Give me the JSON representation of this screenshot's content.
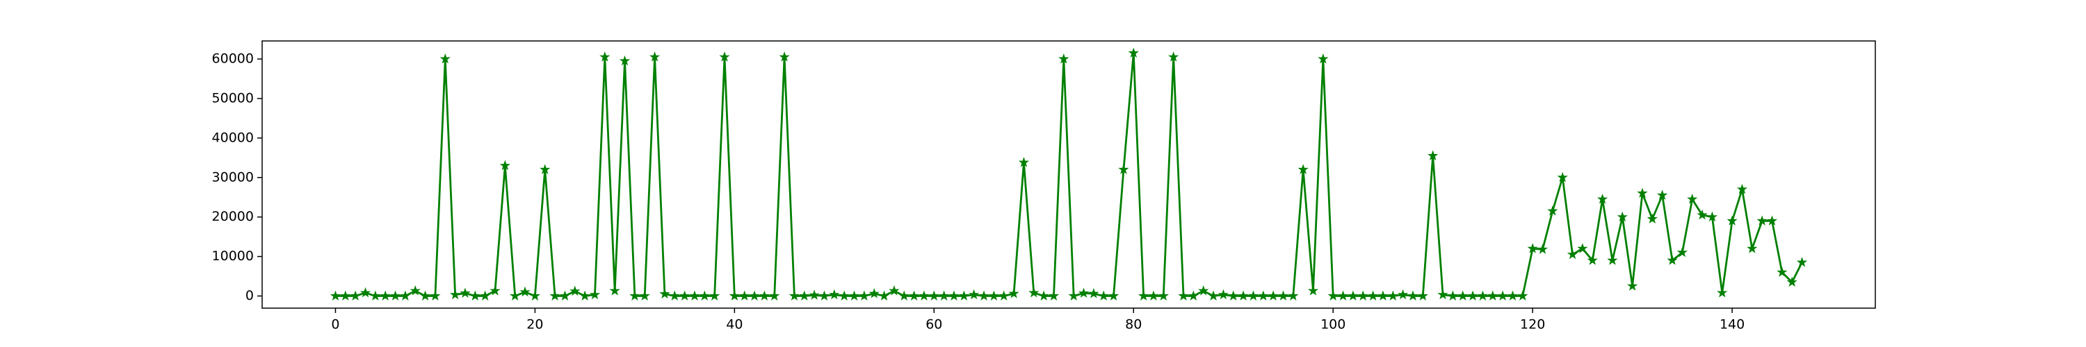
{
  "chart_data": {
    "type": "line",
    "x": [
      0,
      1,
      2,
      3,
      4,
      5,
      6,
      7,
      8,
      9,
      10,
      11,
      12,
      13,
      14,
      15,
      16,
      17,
      18,
      19,
      20,
      21,
      22,
      23,
      24,
      25,
      26,
      27,
      28,
      29,
      30,
      31,
      32,
      33,
      34,
      35,
      36,
      37,
      38,
      39,
      40,
      41,
      42,
      43,
      44,
      45,
      46,
      47,
      48,
      49,
      50,
      51,
      52,
      53,
      54,
      55,
      56,
      57,
      58,
      59,
      60,
      61,
      62,
      63,
      64,
      65,
      66,
      67,
      68,
      69,
      70,
      71,
      72,
      73,
      74,
      75,
      76,
      77,
      78,
      79,
      80,
      81,
      82,
      83,
      84,
      85,
      86,
      87,
      88,
      89,
      90,
      91,
      92,
      93,
      94,
      95,
      96,
      97,
      98,
      99,
      100,
      101,
      102,
      103,
      104,
      105,
      106,
      107,
      108,
      109,
      110,
      111,
      112,
      113,
      114,
      115,
      116,
      117,
      118,
      119,
      120,
      121,
      122,
      123,
      124,
      125,
      126,
      127,
      128,
      129,
      130,
      131,
      132,
      133,
      134,
      135,
      136,
      137,
      138,
      139,
      140,
      141,
      142,
      143,
      144,
      145,
      146,
      147
    ],
    "series": [
      {
        "color": "#008000",
        "marker": "star",
        "values": [
          0,
          0,
          0,
          800,
          0,
          0,
          0,
          0,
          1300,
          0,
          0,
          60000,
          300,
          700,
          0,
          0,
          1300,
          33000,
          0,
          1000,
          0,
          32000,
          0,
          0,
          1200,
          0,
          300,
          60500,
          1300,
          59500,
          0,
          0,
          60500,
          500,
          0,
          0,
          0,
          0,
          0,
          60500,
          0,
          0,
          0,
          0,
          0,
          60500,
          0,
          0,
          200,
          0,
          300,
          0,
          0,
          0,
          600,
          0,
          1300,
          0,
          0,
          0,
          0,
          0,
          0,
          0,
          300,
          0,
          0,
          0,
          600,
          33800,
          800,
          0,
          0,
          60000,
          0,
          700,
          600,
          0,
          0,
          32000,
          61500,
          0,
          0,
          0,
          60500,
          0,
          0,
          1300,
          0,
          300,
          0,
          0,
          0,
          0,
          0,
          0,
          0,
          32000,
          1300,
          60000,
          0,
          0,
          0,
          0,
          0,
          0,
          0,
          300,
          0,
          0,
          35500,
          300,
          0,
          0,
          0,
          0,
          0,
          0,
          0,
          0,
          12000,
          11800,
          21500,
          30000,
          10500,
          12000,
          9000,
          24500,
          9000,
          20000,
          2500,
          26000,
          19500,
          25500,
          9000,
          11000,
          24500,
          20500,
          20000,
          800,
          19000,
          27000,
          12000,
          19000,
          19000,
          6000,
          3500,
          8500
        ]
      }
    ],
    "xlim": [
      -7.35,
      154.35
    ],
    "xticks": [
      0,
      20,
      40,
      60,
      80,
      100,
      120,
      140
    ],
    "ylim": [
      -3075,
      64575
    ],
    "yticks": [
      0,
      10000,
      20000,
      30000,
      40000,
      50000,
      60000
    ],
    "grid": false
  }
}
